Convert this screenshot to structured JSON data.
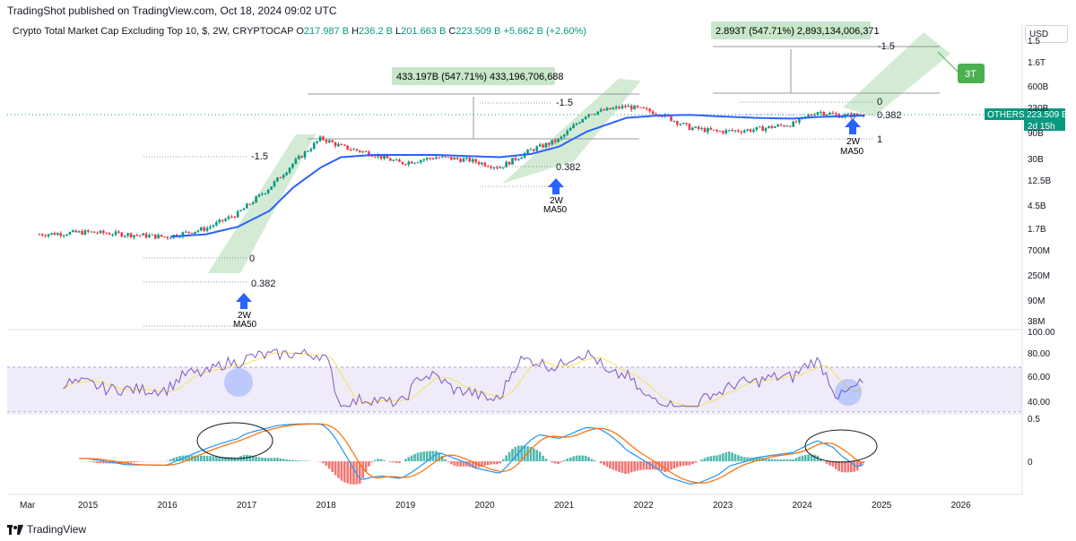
{
  "header": {
    "published": "TradingShot published on TradingView.com, Oct 18, 2024 09:02 UTC",
    "title": "Crypto Total Market Cap Excluding Top 10, $, 2W, CRYPTOCAP",
    "o_label": "O",
    "o_value": "217.987 B",
    "h_label": "H",
    "h_value": "236.2 B",
    "l_label": "L",
    "l_value": "201.663 B",
    "c_label": "C",
    "c_value": "223.509 B",
    "change": "+5.662 B (+2.60%)"
  },
  "currency": "USD",
  "footer": {
    "brand": "TradingView"
  },
  "colors": {
    "up": "#089981",
    "down": "#f23645",
    "ma": "#2962ff",
    "rsi": "#7e57c2",
    "rsi_ma": "#f7e35a",
    "macd": "#2196f3",
    "signal": "#ff6d00",
    "channel": "#c8e6c9"
  },
  "price_axis": [
    "1.5",
    "1.6T",
    "600B",
    "230B",
    "90B",
    "30B",
    "12.5B",
    "4.5B",
    "1.7B",
    "700M",
    "250M",
    "90M",
    "38M"
  ],
  "badge": {
    "symbol": "OTHERS",
    "price": "223.509 B",
    "countdown": "2d 15h"
  },
  "rsi_axis": [
    "100.00",
    "80.00",
    "60.00",
    "40.00"
  ],
  "macd_axis": [
    "0.5",
    "0"
  ],
  "time_axis": [
    "Mar",
    "2015",
    "2016",
    "2017",
    "2018",
    "2019",
    "2020",
    "2021",
    "2022",
    "2023",
    "2024",
    "2025",
    "2026"
  ],
  "annotations": {
    "measure1": "433.197B (547.71%) 433,196,706,688",
    "measure2": "2.893T (547.71%) 2,893,134,006,371",
    "target": "3T",
    "ma_label_line1": "2W",
    "ma_label_line2": "MA50",
    "fib": {
      "ext": "-1.5",
      "zero": "0",
      "f382": "0.382",
      "one": "1"
    }
  },
  "chart_data": {
    "type": "line",
    "title": "Crypto Total Market Cap Excluding Top 10, $, 2W, CRYPTOCAP",
    "xlabel": "",
    "ylabel": "",
    "log_scale": true,
    "ylim": [
      "38M",
      "1.5T"
    ],
    "x": [
      2014.4,
      2015.0,
      2015.5,
      2016.0,
      2016.5,
      2016.9,
      2017.3,
      2017.6,
      2017.95,
      2018.2,
      2018.6,
      2018.95,
      2019.4,
      2019.8,
      2020.2,
      2020.6,
      2020.95,
      2021.3,
      2021.8,
      2022.2,
      2022.6,
      2022.95,
      2023.4,
      2023.9,
      2024.2,
      2024.5,
      2024.8
    ],
    "series": [
      {
        "name": "OTHERS",
        "values_billion": [
          0.06,
          0.07,
          0.06,
          0.05,
          0.09,
          0.25,
          1.5,
          8,
          45,
          25,
          15,
          8,
          12,
          10,
          6,
          20,
          40,
          240,
          400,
          250,
          90,
          70,
          80,
          120,
          280,
          210,
          223.5
        ]
      },
      {
        "name": "2W MA50",
        "values_billion": [
          null,
          null,
          null,
          0.05,
          0.06,
          0.1,
          0.3,
          1.5,
          6,
          12,
          14,
          14,
          14,
          13,
          12,
          15,
          25,
          70,
          180,
          210,
          220,
          200,
          180,
          170,
          190,
          200,
          210
        ]
      }
    ],
    "rsi": {
      "range": [
        40,
        100
      ],
      "band": [
        30,
        70
      ]
    },
    "macd": {
      "range": [
        -0.2,
        0.5
      ]
    }
  }
}
